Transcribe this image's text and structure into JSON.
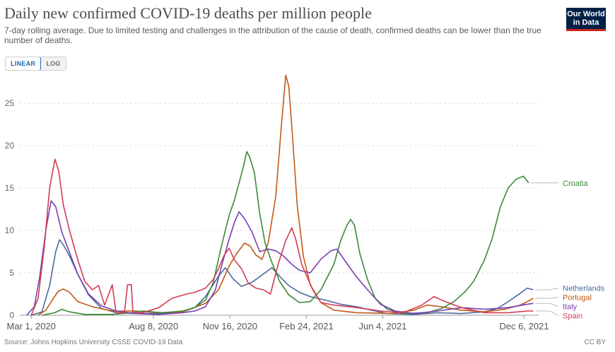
{
  "header": {
    "title": "Daily new confirmed COVID-19 deaths per million people",
    "subtitle": "7-day rolling average. Due to limited testing and challenges in the attribution of the cause of death, confirmed deaths can be lower than the true number of deaths.",
    "logo_line1": "Our World",
    "logo_line2": "in Data",
    "logo_color": "#002147",
    "logo_accent": "#ce261e"
  },
  "controls": {
    "linear_label": "LINEAR",
    "log_label": "LOG",
    "selected": "LINEAR"
  },
  "footer": {
    "source": "Source: Johns Hopkins University CSSE COVID-19 Data",
    "license": "CC BY"
  },
  "chart_data": {
    "type": "line",
    "title": "Daily new confirmed COVID-19 deaths per million people",
    "xlabel": "",
    "ylabel": "",
    "x_range": [
      "2020-02-15",
      "2021-12-25"
    ],
    "ylim": [
      0,
      28.5
    ],
    "y_ticks": [
      0,
      5,
      10,
      15,
      20,
      25
    ],
    "x_ticks": [
      {
        "date": "2020-03-01",
        "label": "Mar 1, 2020"
      },
      {
        "date": "2020-08-08",
        "label": "Aug 8, 2020"
      },
      {
        "date": "2020-11-16",
        "label": "Nov 16, 2020"
      },
      {
        "date": "2021-02-24",
        "label": "Feb 24, 2021"
      },
      {
        "date": "2021-06-04",
        "label": "Jun 4, 2021"
      },
      {
        "date": "2021-12-06",
        "label": "Dec 6, 2021"
      }
    ],
    "grid": "horizontal dashed",
    "legend": "right end labels",
    "series": [
      {
        "name": "Netherlands",
        "color": "#4c6a9c",
        "label_value": 3.2,
        "points": [
          [
            "2020-03-01",
            0
          ],
          [
            "2020-03-15",
            0.4
          ],
          [
            "2020-03-25",
            3.5
          ],
          [
            "2020-04-02",
            7.5
          ],
          [
            "2020-04-07",
            8.9
          ],
          [
            "2020-04-12",
            8.3
          ],
          [
            "2020-04-20",
            7.0
          ],
          [
            "2020-05-01",
            4.8
          ],
          [
            "2020-05-15",
            2.4
          ],
          [
            "2020-06-01",
            0.8
          ],
          [
            "2020-06-20",
            0.3
          ],
          [
            "2020-07-15",
            0.2
          ],
          [
            "2020-08-15",
            0.2
          ],
          [
            "2020-09-15",
            0.4
          ],
          [
            "2020-10-01",
            0.9
          ],
          [
            "2020-10-15",
            2.2
          ],
          [
            "2020-11-01",
            4.6
          ],
          [
            "2020-11-10",
            5.6
          ],
          [
            "2020-11-20",
            4.3
          ],
          [
            "2020-12-01",
            3.4
          ],
          [
            "2020-12-15",
            3.9
          ],
          [
            "2021-01-01",
            5.0
          ],
          [
            "2021-01-10",
            5.6
          ],
          [
            "2021-01-20",
            4.6
          ],
          [
            "2021-02-01",
            3.5
          ],
          [
            "2021-02-15",
            2.7
          ],
          [
            "2021-03-01",
            2.2
          ],
          [
            "2021-03-20",
            1.8
          ],
          [
            "2021-04-10",
            1.3
          ],
          [
            "2021-05-01",
            1.0
          ],
          [
            "2021-05-20",
            0.6
          ],
          [
            "2021-06-10",
            0.2
          ],
          [
            "2021-07-15",
            0.1
          ],
          [
            "2021-08-15",
            0.3
          ],
          [
            "2021-09-15",
            0.2
          ],
          [
            "2021-10-15",
            0.4
          ],
          [
            "2021-11-01",
            0.8
          ],
          [
            "2021-11-15",
            1.6
          ],
          [
            "2021-12-01",
            2.6
          ],
          [
            "2021-12-10",
            3.2
          ],
          [
            "2021-12-18",
            3.0
          ]
        ]
      },
      {
        "name": "Portugal",
        "color": "#c05917",
        "label_value": 2.2,
        "points": [
          [
            "2020-03-10",
            0
          ],
          [
            "2020-03-20",
            0.6
          ],
          [
            "2020-03-30",
            2.0
          ],
          [
            "2020-04-05",
            2.8
          ],
          [
            "2020-04-12",
            3.1
          ],
          [
            "2020-04-20",
            2.7
          ],
          [
            "2020-05-01",
            1.6
          ],
          [
            "2020-05-20",
            1.0
          ],
          [
            "2020-06-15",
            0.5
          ],
          [
            "2020-07-15",
            0.5
          ],
          [
            "2020-08-15",
            0.3
          ],
          [
            "2020-09-15",
            0.4
          ],
          [
            "2020-10-15",
            1.4
          ],
          [
            "2020-11-01",
            3.0
          ],
          [
            "2020-11-15",
            5.8
          ],
          [
            "2020-11-25",
            7.3
          ],
          [
            "2020-12-05",
            8.5
          ],
          [
            "2020-12-12",
            8.2
          ],
          [
            "2020-12-20",
            7.1
          ],
          [
            "2020-12-28",
            6.6
          ],
          [
            "2021-01-05",
            8.5
          ],
          [
            "2021-01-15",
            14.0
          ],
          [
            "2021-01-22",
            22.0
          ],
          [
            "2021-01-28",
            28.3
          ],
          [
            "2021-02-01",
            27.0
          ],
          [
            "2021-02-06",
            21.0
          ],
          [
            "2021-02-12",
            13.0
          ],
          [
            "2021-02-20",
            7.0
          ],
          [
            "2021-03-01",
            3.6
          ],
          [
            "2021-03-15",
            1.5
          ],
          [
            "2021-04-01",
            0.6
          ],
          [
            "2021-05-01",
            0.3
          ],
          [
            "2021-06-15",
            0.2
          ],
          [
            "2021-07-15",
            0.6
          ],
          [
            "2021-08-01",
            1.2
          ],
          [
            "2021-08-20",
            1.0
          ],
          [
            "2021-09-15",
            0.6
          ],
          [
            "2021-10-15",
            0.4
          ],
          [
            "2021-11-10",
            0.7
          ],
          [
            "2021-12-01",
            1.2
          ],
          [
            "2021-12-10",
            1.6
          ],
          [
            "2021-12-18",
            2.0
          ]
        ]
      },
      {
        "name": "Croatia",
        "color": "#3a8a3a",
        "label_value": 15.6,
        "points": [
          [
            "2020-03-15",
            0
          ],
          [
            "2020-04-01",
            0.3
          ],
          [
            "2020-04-10",
            0.7
          ],
          [
            "2020-04-20",
            0.4
          ],
          [
            "2020-05-10",
            0.1
          ],
          [
            "2020-06-15",
            0.1
          ],
          [
            "2020-07-10",
            0.3
          ],
          [
            "2020-07-25",
            0.5
          ],
          [
            "2020-08-20",
            0.3
          ],
          [
            "2020-09-15",
            0.5
          ],
          [
            "2020-10-01",
            0.9
          ],
          [
            "2020-10-15",
            1.8
          ],
          [
            "2020-10-25",
            3.8
          ],
          [
            "2020-11-05",
            8.2
          ],
          [
            "2020-11-15",
            11.8
          ],
          [
            "2020-11-22",
            13.6
          ],
          [
            "2020-11-28",
            15.6
          ],
          [
            "2020-12-03",
            17.3
          ],
          [
            "2020-12-08",
            19.3
          ],
          [
            "2020-12-12",
            18.6
          ],
          [
            "2020-12-18",
            16.8
          ],
          [
            "2020-12-25",
            12.0
          ],
          [
            "2021-01-01",
            8.5
          ],
          [
            "2021-01-10",
            6.2
          ],
          [
            "2021-01-20",
            4.0
          ],
          [
            "2021-02-01",
            2.4
          ],
          [
            "2021-02-15",
            1.5
          ],
          [
            "2021-03-01",
            1.6
          ],
          [
            "2021-03-15",
            3.0
          ],
          [
            "2021-04-01",
            6.0
          ],
          [
            "2021-04-10",
            8.8
          ],
          [
            "2021-04-18",
            10.6
          ],
          [
            "2021-04-23",
            11.3
          ],
          [
            "2021-04-28",
            10.6
          ],
          [
            "2021-05-05",
            7.3
          ],
          [
            "2021-05-15",
            4.2
          ],
          [
            "2021-05-25",
            2.0
          ],
          [
            "2021-06-10",
            0.7
          ],
          [
            "2021-07-01",
            0.2
          ],
          [
            "2021-08-01",
            0.3
          ],
          [
            "2021-08-20",
            0.8
          ],
          [
            "2021-09-05",
            1.6
          ],
          [
            "2021-09-20",
            2.8
          ],
          [
            "2021-10-01",
            4.0
          ],
          [
            "2021-10-15",
            6.5
          ],
          [
            "2021-10-25",
            9.0
          ],
          [
            "2021-11-05",
            12.8
          ],
          [
            "2021-11-15",
            15.0
          ],
          [
            "2021-11-25",
            16.0
          ],
          [
            "2021-12-05",
            16.4
          ],
          [
            "2021-12-12",
            15.6
          ]
        ]
      },
      {
        "name": "Italy",
        "color": "#7a3fb0",
        "label_value": 1.3,
        "points": [
          [
            "2020-02-24",
            0
          ],
          [
            "2020-03-05",
            1.0
          ],
          [
            "2020-03-12",
            4.5
          ],
          [
            "2020-03-20",
            10.0
          ],
          [
            "2020-03-27",
            13.5
          ],
          [
            "2020-04-02",
            12.8
          ],
          [
            "2020-04-10",
            9.8
          ],
          [
            "2020-04-20",
            7.4
          ],
          [
            "2020-05-01",
            4.8
          ],
          [
            "2020-05-15",
            2.5
          ],
          [
            "2020-06-01",
            1.1
          ],
          [
            "2020-06-20",
            0.5
          ],
          [
            "2020-07-15",
            0.2
          ],
          [
            "2020-08-15",
            0.1
          ],
          [
            "2020-09-15",
            0.3
          ],
          [
            "2020-10-01",
            0.5
          ],
          [
            "2020-10-15",
            1.0
          ],
          [
            "2020-10-28",
            3.0
          ],
          [
            "2020-11-05",
            5.8
          ],
          [
            "2020-11-15",
            9.0
          ],
          [
            "2020-11-22",
            11.0
          ],
          [
            "2020-11-28",
            12.2
          ],
          [
            "2020-12-05",
            11.4
          ],
          [
            "2020-12-15",
            9.8
          ],
          [
            "2020-12-25",
            7.5
          ],
          [
            "2021-01-05",
            7.8
          ],
          [
            "2021-01-15",
            7.6
          ],
          [
            "2021-01-25",
            7.0
          ],
          [
            "2021-02-05",
            6.0
          ],
          [
            "2021-02-15",
            5.3
          ],
          [
            "2021-03-01",
            5.0
          ],
          [
            "2021-03-15",
            6.6
          ],
          [
            "2021-03-28",
            7.6
          ],
          [
            "2021-04-05",
            7.8
          ],
          [
            "2021-04-15",
            6.5
          ],
          [
            "2021-04-30",
            4.6
          ],
          [
            "2021-05-15",
            3.0
          ],
          [
            "2021-06-01",
            1.3
          ],
          [
            "2021-06-20",
            0.5
          ],
          [
            "2021-07-15",
            0.2
          ],
          [
            "2021-08-15",
            0.5
          ],
          [
            "2021-09-15",
            0.9
          ],
          [
            "2021-10-15",
            0.7
          ],
          [
            "2021-11-15",
            0.9
          ],
          [
            "2021-12-10",
            1.3
          ],
          [
            "2021-12-18",
            1.4
          ]
        ]
      },
      {
        "name": "Spain",
        "color": "#d13c55",
        "label_value": 0.5,
        "points": [
          [
            "2020-03-01",
            0
          ],
          [
            "2020-03-10",
            2.0
          ],
          [
            "2020-03-18",
            8.0
          ],
          [
            "2020-03-25",
            15.0
          ],
          [
            "2020-04-01",
            18.4
          ],
          [
            "2020-04-06",
            17.0
          ],
          [
            "2020-04-12",
            13.0
          ],
          [
            "2020-04-20",
            10.0
          ],
          [
            "2020-05-01",
            6.5
          ],
          [
            "2020-05-10",
            4.0
          ],
          [
            "2020-05-20",
            3.0
          ],
          [
            "2020-05-28",
            3.5
          ],
          [
            "2020-06-05",
            1.2
          ],
          [
            "2020-06-15",
            3.6
          ],
          [
            "2020-06-20",
            0.3
          ],
          [
            "2020-07-01",
            0.3
          ],
          [
            "2020-07-05",
            3.6
          ],
          [
            "2020-07-10",
            3.6
          ],
          [
            "2020-07-12",
            0.3
          ],
          [
            "2020-07-25",
            0.3
          ],
          [
            "2020-08-15",
            0.9
          ],
          [
            "2020-09-01",
            2.0
          ],
          [
            "2020-09-20",
            2.5
          ],
          [
            "2020-10-01",
            2.7
          ],
          [
            "2020-10-15",
            3.2
          ],
          [
            "2020-10-25",
            4.2
          ],
          [
            "2020-11-01",
            5.5
          ],
          [
            "2020-11-08",
            7.0
          ],
          [
            "2020-11-15",
            7.9
          ],
          [
            "2020-11-22",
            6.5
          ],
          [
            "2020-12-01",
            5.5
          ],
          [
            "2020-12-10",
            3.8
          ],
          [
            "2020-12-20",
            3.2
          ],
          [
            "2020-12-30",
            3.0
          ],
          [
            "2021-01-08",
            2.5
          ],
          [
            "2021-01-18",
            6.0
          ],
          [
            "2021-01-28",
            8.8
          ],
          [
            "2021-02-05",
            10.3
          ],
          [
            "2021-02-10",
            9.0
          ],
          [
            "2021-02-18",
            6.0
          ],
          [
            "2021-02-25",
            4.5
          ],
          [
            "2021-03-05",
            2.9
          ],
          [
            "2021-03-15",
            1.5
          ],
          [
            "2021-04-01",
            1.2
          ],
          [
            "2021-05-01",
            0.9
          ],
          [
            "2021-06-01",
            0.5
          ],
          [
            "2021-07-01",
            0.3
          ],
          [
            "2021-07-25",
            1.2
          ],
          [
            "2021-08-10",
            2.2
          ],
          [
            "2021-08-25",
            1.6
          ],
          [
            "2021-09-15",
            0.9
          ],
          [
            "2021-10-15",
            0.3
          ],
          [
            "2021-11-15",
            0.3
          ],
          [
            "2021-12-10",
            0.5
          ],
          [
            "2021-12-18",
            0.5
          ]
        ]
      }
    ]
  }
}
